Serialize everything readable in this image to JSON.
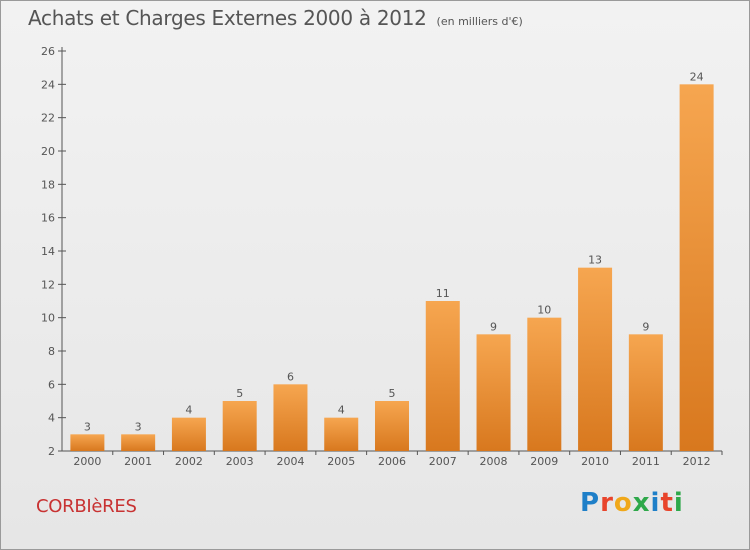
{
  "title": "Achats et Charges Externes 2000 à 2012",
  "unit": "(en milliers d'€)",
  "commune": "CORBIèRES",
  "brand": "Proxiti",
  "colors": {
    "bar_top": "#f6a650",
    "bar_bottom": "#d8781e",
    "axis": "#555555",
    "commune": "#c83232",
    "brand_letters": [
      "#1e7fc8",
      "#e8442b",
      "#f0a81a",
      "#2ea84a",
      "#1e7fc8",
      "#e8442b",
      "#2ea84a"
    ]
  },
  "chart_data": {
    "type": "bar",
    "categories": [
      "2000",
      "2001",
      "2002",
      "2003",
      "2004",
      "2005",
      "2006",
      "2007",
      "2008",
      "2009",
      "2010",
      "2011",
      "2012"
    ],
    "values": [
      3,
      3,
      4,
      5,
      6,
      4,
      5,
      11,
      9,
      10,
      13,
      9,
      24
    ],
    "ylim": [
      2,
      26
    ],
    "yticks": [
      2,
      4,
      6,
      8,
      10,
      12,
      14,
      16,
      18,
      20,
      22,
      24,
      26
    ],
    "grid": false,
    "xlabel": "",
    "ylabel": ""
  }
}
